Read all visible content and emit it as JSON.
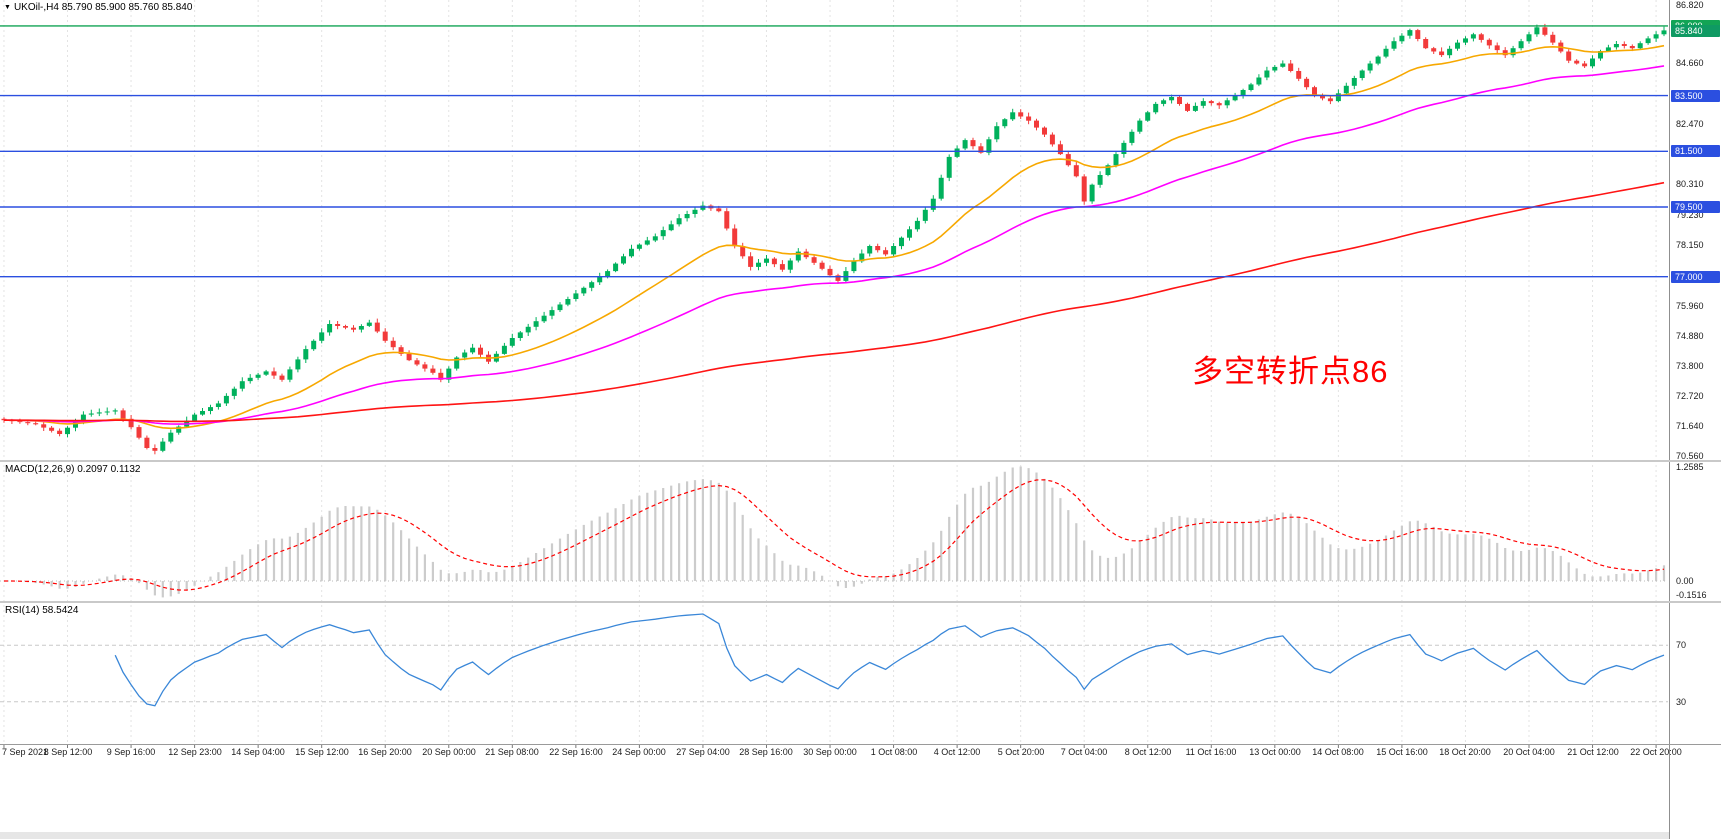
{
  "window": {
    "marker_icon": "▼"
  },
  "annotation": {
    "text": "多空转折点86",
    "color": "#ff0000"
  },
  "chart_data": [
    {
      "type": "candlestick",
      "symbol": "UKOil-",
      "timeframe": "H4",
      "title_full": "UKOil-,H4 85.790 85.900 85.760 85.840",
      "ohlc_display": {
        "open": "85.790",
        "high": "85.900",
        "low": "85.760",
        "close": "85.840"
      },
      "ylim": [
        70.42,
        86.93
      ],
      "y_ticks": [
        86.82,
        84.66,
        82.47,
        80.31,
        79.23,
        78.15,
        75.96,
        74.88,
        73.8,
        72.72,
        71.64,
        70.56
      ],
      "x_labels": [
        "7 Sep 2021",
        "8 Sep 12:00",
        "9 Sep 16:00",
        "12 Sep 23:00",
        "14 Sep 04:00",
        "15 Sep 12:00",
        "16 Sep 20:00",
        "20 Sep 00:00",
        "21 Sep 08:00",
        "22 Sep 16:00",
        "24 Sep 00:00",
        "27 Sep 04:00",
        "28 Sep 16:00",
        "30 Sep 00:00",
        "1 Oct 08:00",
        "4 Oct 12:00",
        "5 Oct 20:00",
        "7 Oct 04:00",
        "8 Oct 12:00",
        "11 Oct 16:00",
        "13 Oct 00:00",
        "14 Oct 08:00",
        "15 Oct 16:00",
        "18 Oct 20:00",
        "20 Oct 04:00",
        "21 Oct 12:00",
        "22 Oct 20:00"
      ],
      "bars_per_label": 8,
      "first_open": 71.9,
      "closes": [
        71.85,
        71.82,
        71.78,
        71.74,
        71.7,
        71.58,
        71.47,
        71.35,
        71.58,
        71.82,
        72.05,
        72.09,
        72.13,
        72.16,
        72.2,
        71.9,
        71.6,
        71.22,
        70.85,
        70.75,
        71.08,
        71.4,
        71.62,
        71.83,
        72.05,
        72.18,
        72.32,
        72.45,
        72.72,
        72.98,
        73.25,
        73.37,
        73.48,
        73.6,
        73.45,
        73.3,
        73.67,
        74.03,
        74.4,
        74.7,
        75.0,
        75.3,
        75.23,
        75.17,
        75.1,
        75.23,
        75.35,
        75.03,
        74.7,
        74.47,
        74.23,
        74.0,
        73.85,
        73.7,
        73.55,
        73.3,
        73.7,
        74.1,
        74.28,
        74.45,
        74.2,
        73.95,
        74.23,
        74.52,
        74.8,
        75.0,
        75.2,
        75.4,
        75.6,
        75.8,
        76.0,
        76.2,
        76.4,
        76.6,
        76.8,
        77.0,
        77.2,
        77.47,
        77.73,
        78.0,
        78.15,
        78.3,
        78.45,
        78.67,
        78.88,
        79.1,
        79.25,
        79.4,
        79.55,
        79.45,
        79.35,
        78.73,
        78.1,
        77.73,
        77.35,
        77.5,
        77.65,
        77.45,
        77.25,
        77.58,
        77.9,
        77.7,
        77.5,
        77.28,
        77.05,
        76.85,
        77.2,
        77.55,
        77.83,
        78.1,
        77.95,
        77.8,
        78.1,
        78.4,
        78.7,
        79.0,
        79.4,
        79.8,
        80.55,
        81.3,
        81.6,
        81.9,
        81.68,
        81.45,
        81.93,
        82.4,
        82.65,
        82.9,
        82.75,
        82.6,
        82.35,
        82.1,
        81.75,
        81.4,
        81.0,
        80.6,
        79.7,
        80.3,
        80.65,
        81.0,
        81.4,
        81.8,
        82.2,
        82.6,
        82.9,
        83.2,
        83.33,
        83.45,
        83.2,
        82.95,
        83.13,
        83.3,
        83.23,
        83.15,
        83.33,
        83.5,
        83.7,
        83.9,
        84.15,
        84.4,
        84.53,
        84.65,
        84.38,
        84.1,
        83.8,
        83.5,
        83.4,
        83.3,
        83.58,
        83.85,
        84.13,
        84.4,
        84.65,
        84.9,
        85.18,
        85.45,
        85.65,
        85.85,
        85.53,
        85.2,
        85.08,
        84.95,
        85.18,
        85.4,
        85.55,
        85.7,
        85.5,
        85.3,
        85.13,
        84.95,
        85.2,
        85.45,
        85.7,
        85.95,
        85.68,
        85.4,
        85.08,
        84.75,
        84.65,
        84.55,
        84.83,
        85.1,
        85.23,
        85.35,
        85.28,
        85.2,
        85.38,
        85.55,
        85.7,
        85.84
      ],
      "up_color": "#00b15c",
      "down_color": "#f23a3a",
      "moving_averages": [
        {
          "name": "ma-fast",
          "period": 21,
          "color": "#f7a800"
        },
        {
          "name": "ma-mid",
          "period": 55,
          "color": "#ff00ff"
        },
        {
          "name": "ma-slow",
          "period": 200,
          "color": "#ff1414"
        }
      ],
      "h_lines": [
        {
          "price": 86.0,
          "label": "86.000",
          "color": "#12a455"
        },
        {
          "price": 83.5,
          "label": "83.500",
          "color": "#2b4fe0"
        },
        {
          "price": 81.5,
          "label": "81.500",
          "color": "#2b4fe0"
        },
        {
          "price": 79.5,
          "label": "79.500",
          "color": "#2b4fe0"
        },
        {
          "price": 77.0,
          "label": "77.000",
          "color": "#2b4fe0"
        }
      ],
      "current_price": {
        "value": 85.84,
        "label": "85.840",
        "color": "#0f9a63"
      },
      "annotation": {
        "text": "多空转折点86",
        "color": "#ff0000"
      }
    },
    {
      "type": "macd",
      "label": "MACD(12,26,9) 0.2097 0.1132",
      "params": [
        12,
        26,
        9
      ],
      "macd_value": 0.2097,
      "signal_value": 0.1132,
      "scale_labels": [
        {
          "v": 1.2585,
          "t": "1.2585"
        },
        {
          "v": 0,
          "t": "0.00"
        },
        {
          "v": -0.1516,
          "t": "-0.1516"
        }
      ],
      "histogram_color": "#cccccc",
      "signal_color": "#ff0000",
      "derived_from": "chart_data[0].closes"
    },
    {
      "type": "line",
      "indicator": "rsi",
      "label": "RSI(14) 58.5424",
      "period": 14,
      "current_value": 58.5424,
      "ylim": [
        0,
        100
      ],
      "levels": [
        {
          "v": 70,
          "t": "70"
        },
        {
          "v": 30,
          "t": "30"
        }
      ],
      "line_color": "#3a87d8",
      "level_color": "#c8c8c8",
      "derived_from": "chart_data[0].closes"
    }
  ]
}
